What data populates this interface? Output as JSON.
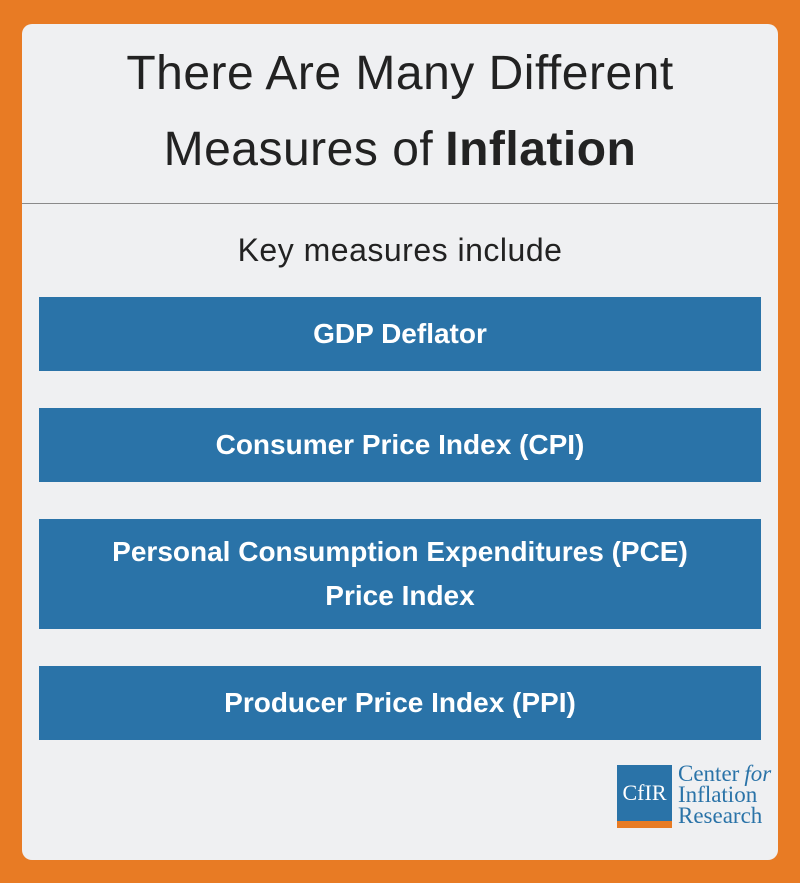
{
  "title": {
    "line1": "There Are Many Different",
    "line2_prefix": "Measures of",
    "line2_emphasis": "Inflation"
  },
  "subtitle": "Key measures include",
  "measures": [
    {
      "lines": [
        "GDP Deflator"
      ]
    },
    {
      "lines": [
        "Consumer Price Index (CPI)"
      ]
    },
    {
      "lines": [
        "Personal Consumption Expenditures (PCE)",
        "Price Index"
      ]
    },
    {
      "lines": [
        "Producer Price Index (PPI)"
      ]
    }
  ],
  "logo": {
    "mark": "CfIR",
    "line1": "Center",
    "line1_italic": "for",
    "line2": "Inflation",
    "line3": "Research"
  }
}
